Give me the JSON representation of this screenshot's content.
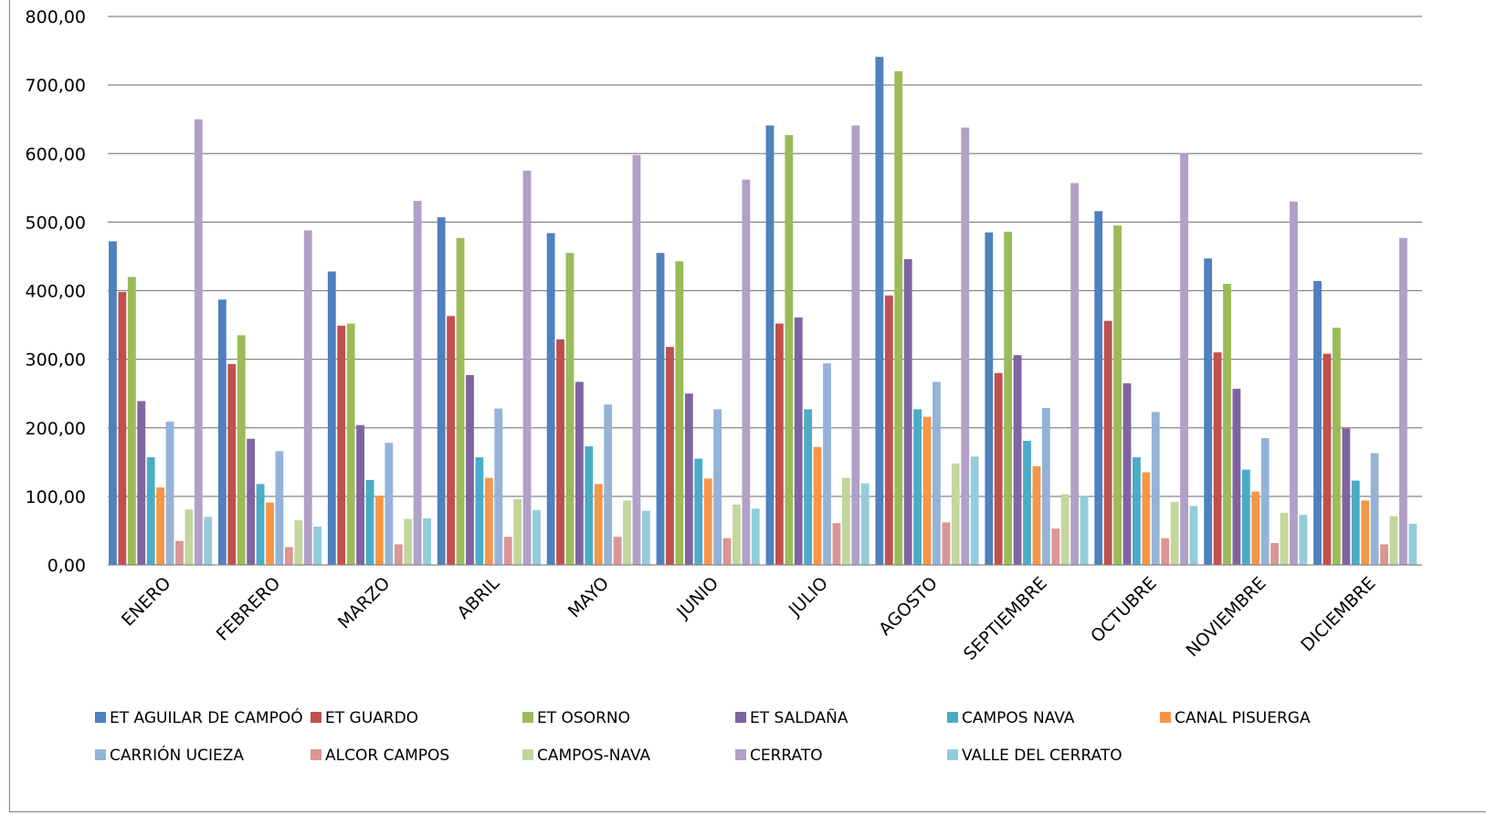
{
  "chart_data": {
    "type": "bar",
    "title": "",
    "xlabel": "",
    "ylabel": "",
    "ylim": [
      0,
      800
    ],
    "yticks": [
      "0,00",
      "100,00",
      "200,00",
      "300,00",
      "400,00",
      "500,00",
      "600,00",
      "700,00",
      "800,00"
    ],
    "grid": true,
    "legend_position": "bottom",
    "categories": [
      "ENERO",
      "FEBRERO",
      "MARZO",
      "ABRIL",
      "MAYO",
      "JUNIO",
      "JULIO",
      "AGOSTO",
      "SEPTIEMBRE",
      "OCTUBRE",
      "NOVIEMBRE",
      "DICIEMBRE"
    ],
    "series": [
      {
        "name": "ET AGUILAR DE CAMPOÓ",
        "color": "#4F81BD",
        "values": [
          472,
          387,
          428,
          507,
          484,
          455,
          641,
          741,
          485,
          516,
          447,
          414
        ]
      },
      {
        "name": "ET GUARDO",
        "color": "#C0504D",
        "values": [
          398,
          293,
          349,
          363,
          329,
          318,
          352,
          393,
          280,
          356,
          310,
          308
        ]
      },
      {
        "name": "ET OSORNO",
        "color": "#9BBB59",
        "values": [
          420,
          335,
          352,
          477,
          455,
          443,
          627,
          720,
          486,
          495,
          410,
          346
        ]
      },
      {
        "name": "ET SALDAÑA",
        "color": "#8064A2",
        "values": [
          239,
          184,
          204,
          277,
          267,
          250,
          361,
          446,
          306,
          265,
          257,
          199
        ]
      },
      {
        "name": "CAMPOS NAVA",
        "color": "#4BACC6",
        "values": [
          157,
          118,
          124,
          157,
          173,
          155,
          227,
          227,
          181,
          157,
          139,
          123
        ]
      },
      {
        "name": "CANAL PISUERGA",
        "color": "#F79646",
        "values": [
          113,
          91,
          101,
          127,
          118,
          126,
          172,
          216,
          144,
          135,
          107,
          94
        ]
      },
      {
        "name": "CARRIÓN UCIEZA",
        "color": "#95B3D7",
        "values": [
          209,
          166,
          178,
          228,
          234,
          227,
          294,
          267,
          229,
          223,
          185,
          163
        ]
      },
      {
        "name": "ALCOR CAMPOS",
        "color": "#DA9694",
        "values": [
          35,
          26,
          30,
          41,
          41,
          39,
          61,
          62,
          53,
          39,
          32,
          30
        ]
      },
      {
        "name": "CAMPOS-NAVA",
        "color": "#C3D69B",
        "values": [
          81,
          65,
          67,
          96,
          94,
          88,
          127,
          148,
          103,
          92,
          76,
          71
        ]
      },
      {
        "name": "CERRATO",
        "color": "#B1A0C7",
        "values": [
          650,
          488,
          531,
          575,
          598,
          562,
          641,
          638,
          557,
          601,
          530,
          477
        ]
      },
      {
        "name": "VALLE DEL CERRATO",
        "color": "#92CDDC",
        "values": [
          70,
          56,
          68,
          80,
          79,
          82,
          119,
          158,
          101,
          86,
          73,
          60
        ]
      }
    ]
  }
}
